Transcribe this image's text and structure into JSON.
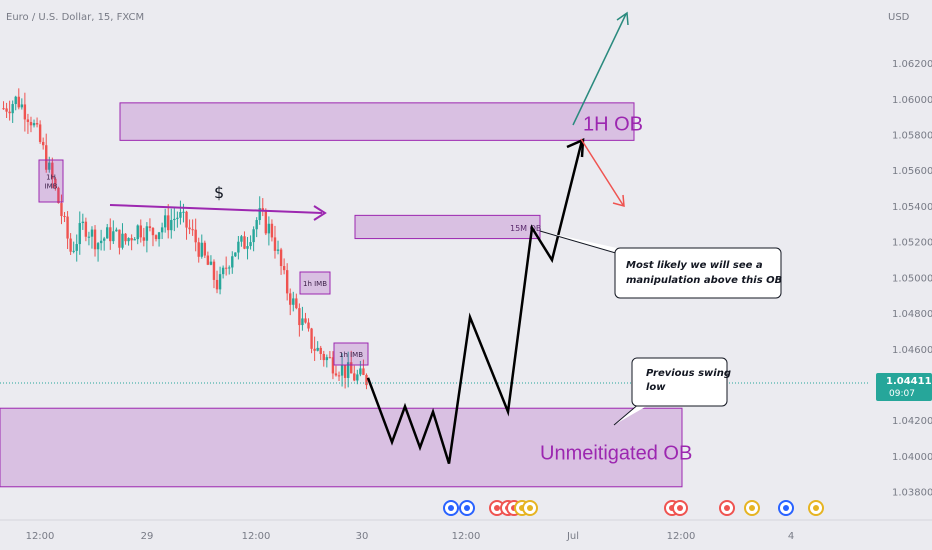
{
  "header": {
    "symbol_title": "Euro / U.S. Dollar, 15, FXCM",
    "currency": "USD"
  },
  "price_badge": {
    "price": "1.04411",
    "countdown": "09:07"
  },
  "chart_data": {
    "type": "candlestick",
    "title": "Euro / U.S. Dollar, 15, FXCM",
    "y_axis_label": "USD",
    "ylim": [
      1.037,
      1.065
    ],
    "y_ticks": [
      "1.06200",
      "1.06000",
      "1.05800",
      "1.05600",
      "1.05400",
      "1.05200",
      "1.05000",
      "1.04800",
      "1.04600",
      "1.04200",
      "1.04000",
      "1.03800"
    ],
    "x_ticks": [
      "12:00",
      "29",
      "12:00",
      "30",
      "12:00",
      "Jul",
      "12:00",
      "4"
    ],
    "last_price": 1.04411,
    "price_path": [
      1.0595,
      1.06,
      1.059,
      1.057,
      1.0545,
      1.0515,
      1.053,
      1.052,
      1.0525,
      1.052,
      1.0528,
      1.0525,
      1.053,
      1.0535,
      1.0525,
      1.051,
      1.0495,
      1.0515,
      1.052,
      1.0535,
      1.0525,
      1.0495,
      1.0478,
      1.0462,
      1.0455,
      1.045,
      1.0445,
      1.0443
    ],
    "zones": [
      {
        "name": "1H OB",
        "low": 1.0577,
        "high": 1.0598
      },
      {
        "name": "15M OB",
        "low": 1.0522,
        "high": 1.0535
      },
      {
        "name": "Unmeitigated OB",
        "low": 1.0383,
        "high": 1.0427
      }
    ],
    "imbalance_labels": [
      "1H IMB",
      "1h IMB",
      "1h IMB"
    ],
    "liquidity_label": "$",
    "projection_path": [
      1.0444,
      1.0408,
      1.0428,
      1.0405,
      1.0425,
      1.0396,
      1.0478,
      1.0425,
      1.0528,
      1.051,
      1.0577
    ],
    "annotations": [
      {
        "text": "Most likely we will see a manipulation above this OB"
      },
      {
        "text": "Previous swing low"
      }
    ]
  }
}
